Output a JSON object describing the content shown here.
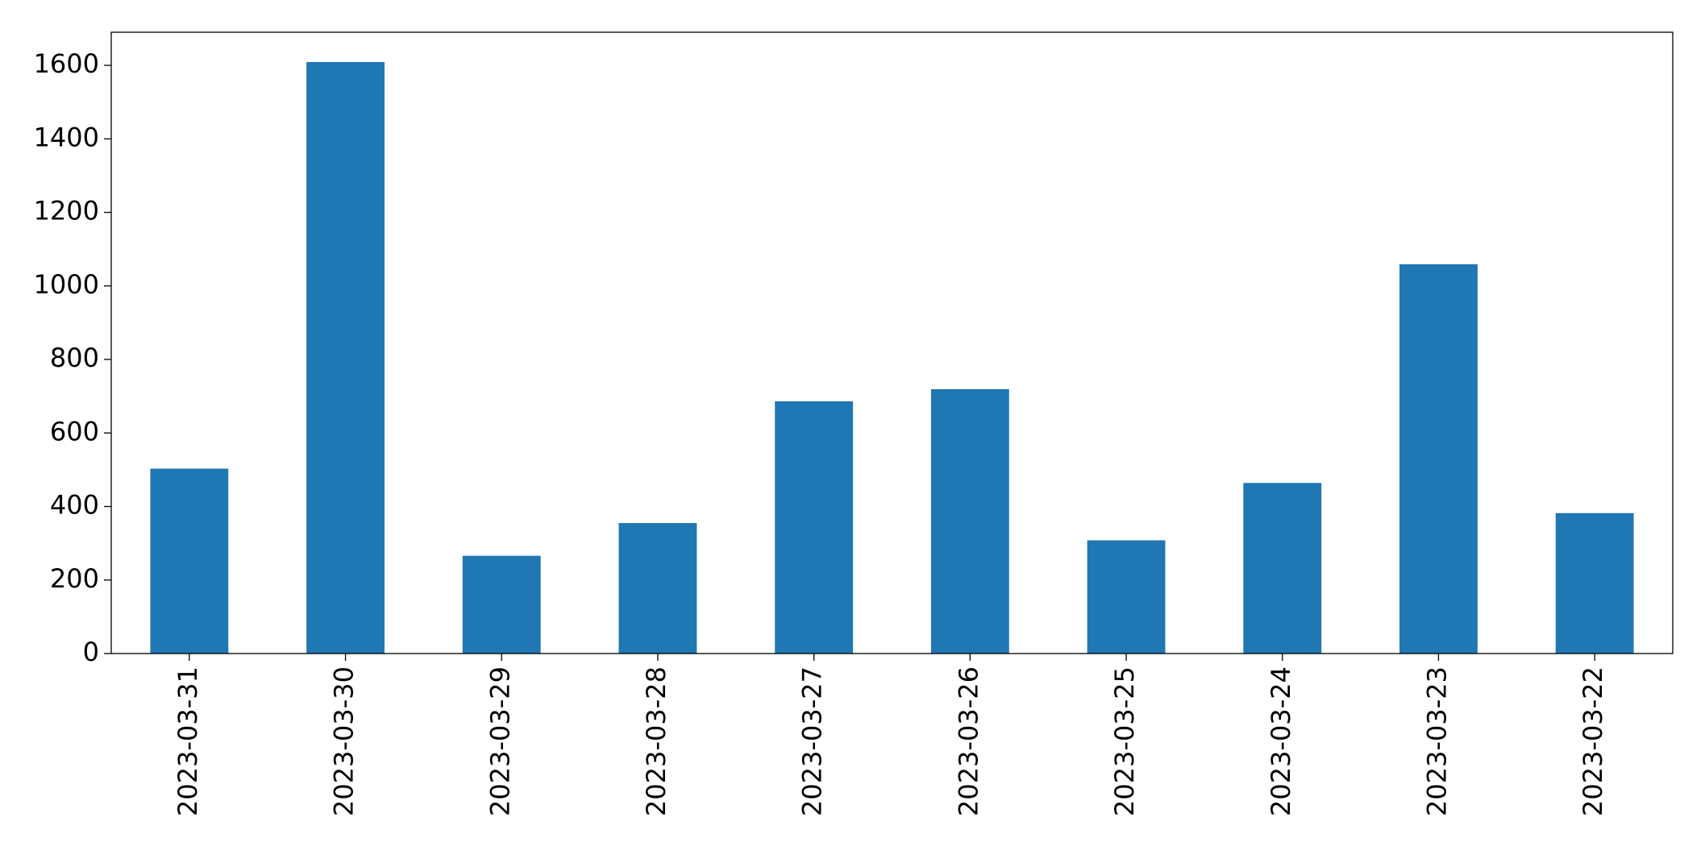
{
  "chart_data": {
    "type": "bar",
    "categories": [
      "2023-03-31",
      "2023-03-30",
      "2023-03-29",
      "2023-03-28",
      "2023-03-27",
      "2023-03-26",
      "2023-03-25",
      "2023-03-24",
      "2023-03-23",
      "2023-03-22"
    ],
    "values": [
      503,
      1609,
      266,
      355,
      686,
      719,
      308,
      464,
      1059,
      382
    ],
    "color": "#1f77b4",
    "ylim": [
      0,
      1690
    ],
    "yticks": [
      0,
      200,
      400,
      600,
      800,
      1000,
      1200,
      1400,
      1600
    ],
    "grid": false
  }
}
